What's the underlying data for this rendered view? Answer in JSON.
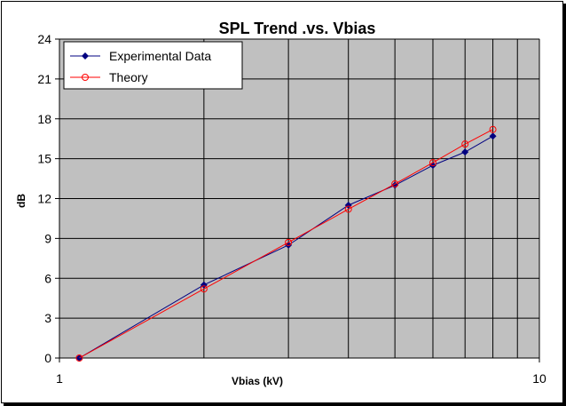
{
  "chart_data": {
    "type": "line",
    "title": "SPL Trend .vs. Vbias",
    "xlabel": "Vbias (kV)",
    "ylabel": "dB",
    "x_scale": "log",
    "xlim": [
      1,
      10
    ],
    "ylim": [
      0,
      24
    ],
    "x_tick_labels": [
      "1",
      "10"
    ],
    "y_ticks": [
      0,
      3,
      6,
      9,
      12,
      15,
      18,
      21,
      24
    ],
    "grid": true,
    "plot_background": "#c0c0c0",
    "legend_position": "top-left",
    "series": [
      {
        "name": "Experimental Data",
        "color": "#000080",
        "marker": "diamond-filled",
        "x": [
          1.1,
          2.0,
          3.0,
          4.0,
          5.0,
          6.0,
          7.0,
          8.0
        ],
        "y": [
          0,
          5.5,
          8.5,
          11.5,
          13.0,
          14.5,
          15.5,
          16.7
        ]
      },
      {
        "name": "Theory",
        "color": "#ff0000",
        "marker": "circle-open",
        "x": [
          1.1,
          2.0,
          3.0,
          4.0,
          5.0,
          6.0,
          7.0,
          8.0
        ],
        "y": [
          0,
          5.2,
          8.7,
          11.2,
          13.1,
          14.7,
          16.1,
          17.2
        ]
      }
    ]
  }
}
